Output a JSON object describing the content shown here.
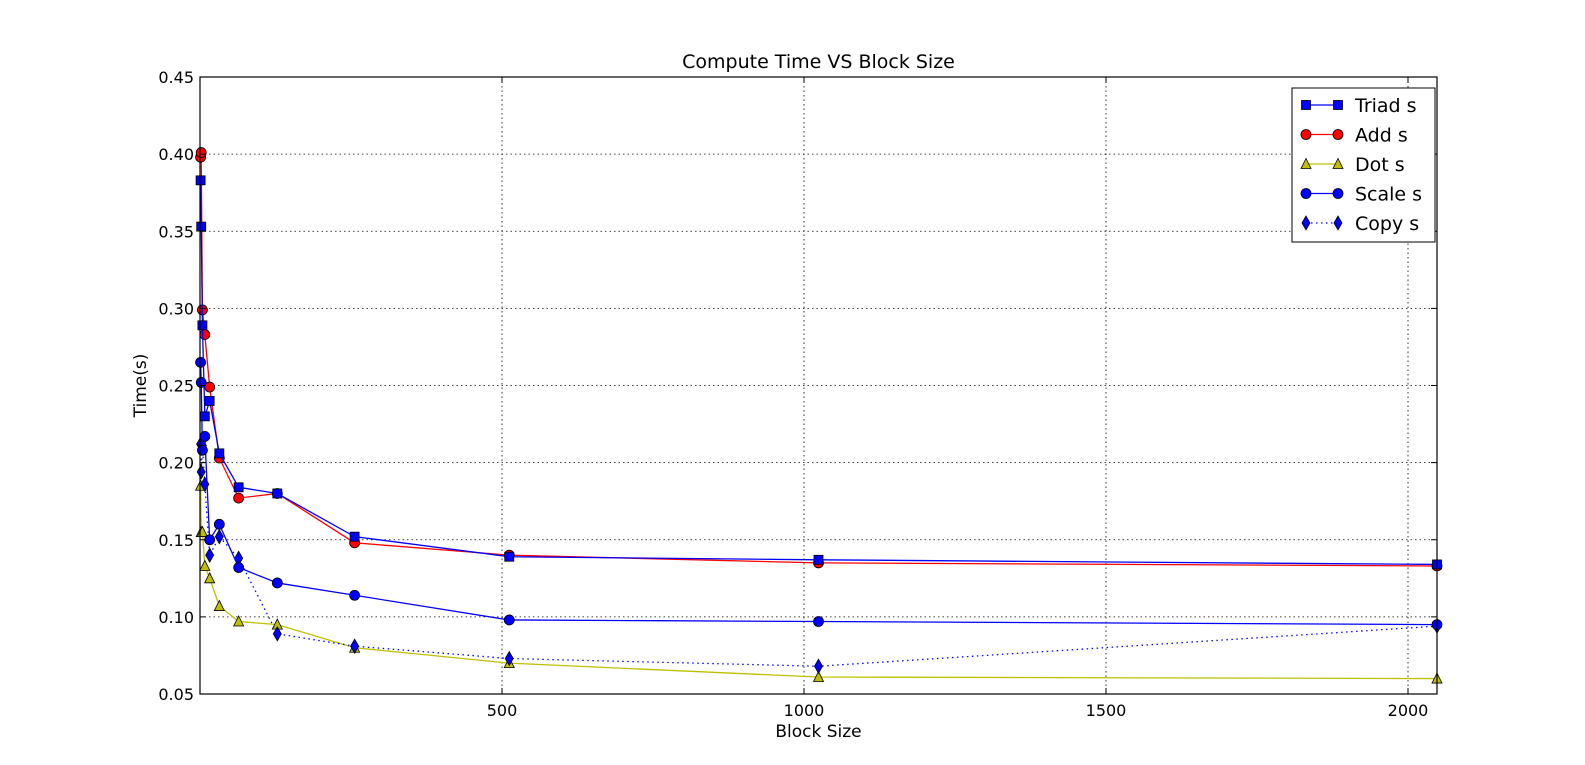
{
  "chart_data": {
    "type": "line",
    "title": "Compute Time VS Block Size",
    "xlabel": "Block Size",
    "ylabel": "Time(s)",
    "xlim": [
      0,
      2048
    ],
    "ylim": [
      0.05,
      0.45
    ],
    "xticks": [
      500,
      1000,
      1500,
      2000
    ],
    "yticks": [
      0.05,
      0.1,
      0.15,
      0.2,
      0.25,
      0.3,
      0.35,
      0.4,
      0.45
    ],
    "xtick_labels": [
      "500",
      "1000",
      "1500",
      "2000"
    ],
    "ytick_labels": [
      "0.05",
      "0.10",
      "0.15",
      "0.20",
      "0.25",
      "0.30",
      "0.35",
      "0.40",
      "0.45"
    ],
    "grid": true,
    "legend_position": "top-right",
    "series": [
      {
        "name": "Triad s",
        "color": "#0000ff",
        "marker": "square",
        "linestyle": "solid",
        "x": [
          1,
          2,
          4,
          8,
          16,
          32,
          64,
          128,
          256,
          512,
          1024,
          2048
        ],
        "y": [
          0.383,
          0.353,
          0.289,
          0.23,
          0.24,
          0.206,
          0.184,
          0.18,
          0.152,
          0.139,
          0.137,
          0.134
        ]
      },
      {
        "name": "Add s",
        "color": "#ff0000",
        "marker": "circle",
        "linestyle": "solid",
        "x": [
          1,
          2,
          4,
          8,
          16,
          32,
          64,
          128,
          256,
          512,
          1024,
          2048
        ],
        "y": [
          0.398,
          0.401,
          0.299,
          0.283,
          0.249,
          0.203,
          0.177,
          0.18,
          0.148,
          0.14,
          0.135,
          0.133
        ]
      },
      {
        "name": "Dot s",
        "color": "#bfbf00",
        "marker": "triangle",
        "linestyle": "solid",
        "x": [
          1,
          2,
          4,
          8,
          16,
          32,
          64,
          128,
          256,
          512,
          1024,
          2048
        ],
        "y": [
          0.185,
          0.155,
          0.155,
          0.133,
          0.125,
          0.107,
          0.097,
          0.095,
          0.08,
          0.07,
          0.061,
          0.06
        ]
      },
      {
        "name": "Scale s",
        "color": "#0000ff",
        "marker": "circle",
        "linestyle": "solid",
        "x": [
          1,
          2,
          4,
          8,
          16,
          32,
          64,
          128,
          256,
          512,
          1024,
          2048
        ],
        "y": [
          0.265,
          0.252,
          0.208,
          0.217,
          0.15,
          0.16,
          0.132,
          0.122,
          0.114,
          0.098,
          0.097,
          0.095
        ]
      },
      {
        "name": "Copy s",
        "color": "#0000ff",
        "marker": "diamond",
        "linestyle": "dotted",
        "x": [
          1,
          2,
          4,
          8,
          16,
          32,
          64,
          128,
          256,
          512,
          1024,
          2048
        ],
        "y": [
          0.212,
          0.194,
          0.211,
          0.186,
          0.14,
          0.152,
          0.138,
          0.089,
          0.081,
          0.073,
          0.068,
          0.094
        ]
      }
    ]
  }
}
